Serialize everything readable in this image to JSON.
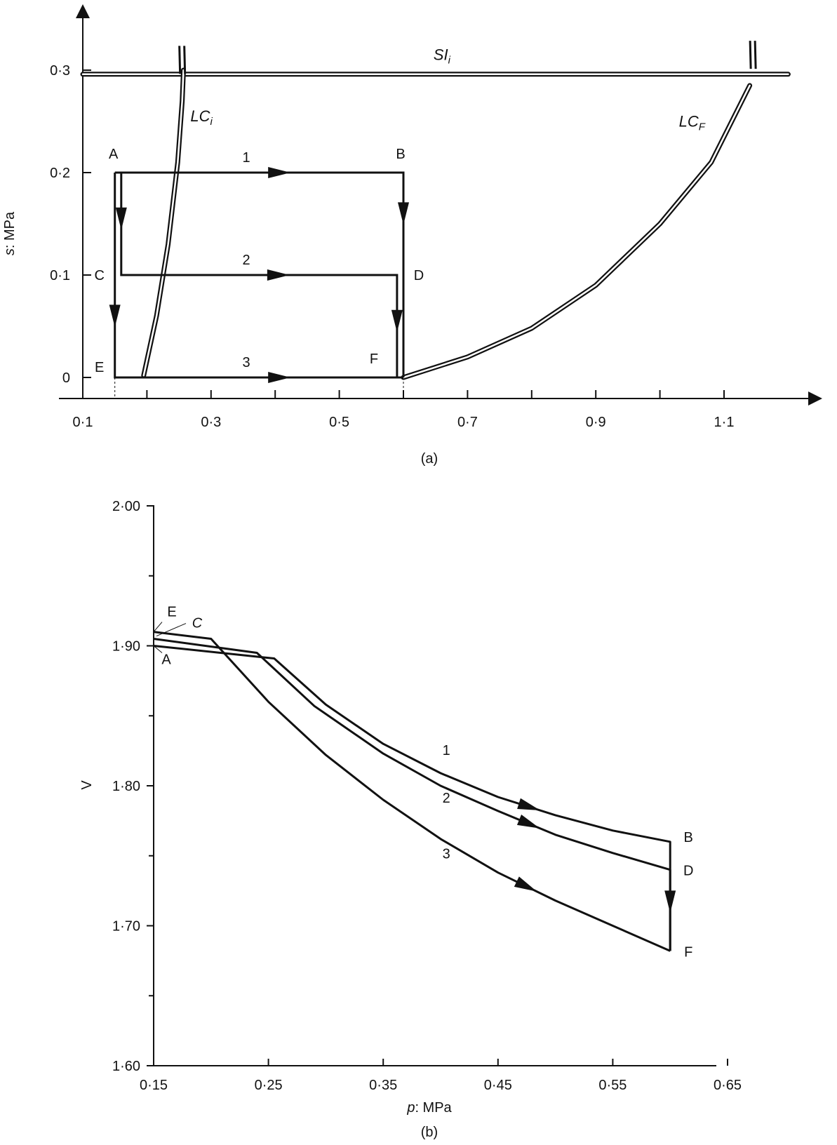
{
  "chart_data": [
    {
      "type": "line",
      "panel_label": "(a)",
      "ylabel_var": "s",
      "ylabel_unit": ": MPa",
      "xlim": [
        0.1,
        1.2
      ],
      "ylim": [
        0,
        0.3
      ],
      "x_ticks": [
        0.1,
        0.2,
        0.3,
        0.4,
        0.5,
        0.6,
        0.7,
        0.8,
        0.9,
        1.0,
        1.1
      ],
      "x_tick_labels": [
        {
          "x": 0.1,
          "label": "0·1"
        },
        {
          "x": 0.3,
          "label": "0·3"
        },
        {
          "x": 0.5,
          "label": "0·5"
        },
        {
          "x": 0.7,
          "label": "0·7"
        },
        {
          "x": 0.9,
          "label": "0·9"
        },
        {
          "x": 1.1,
          "label": "1·1"
        }
      ],
      "y_ticks": [
        {
          "y": 0,
          "label": "0"
        },
        {
          "y": 0.1,
          "label": "0·1"
        },
        {
          "y": 0.2,
          "label": "0·2"
        },
        {
          "y": 0.3,
          "label": "0·3"
        }
      ],
      "grid": false,
      "curves": [
        {
          "main": "SI",
          "sub": "i",
          "label_at": [
            0.66,
            0.31
          ],
          "points": [
            [
              0.1,
              0.296
            ],
            [
              1.2,
              0.296
            ]
          ]
        },
        {
          "main": "LC",
          "sub": "i",
          "label_at": [
            0.285,
            0.25
          ],
          "points": [
            [
              0.195,
              0.002
            ],
            [
              0.215,
              0.06
            ],
            [
              0.233,
              0.13
            ],
            [
              0.248,
              0.21
            ],
            [
              0.255,
              0.27
            ],
            [
              0.257,
              0.3
            ]
          ]
        },
        {
          "main": "LC",
          "sub": "F",
          "label_at": [
            1.05,
            0.245
          ],
          "points": [
            [
              0.6,
              0.0
            ],
            [
              0.7,
              0.02
            ],
            [
              0.8,
              0.048
            ],
            [
              0.9,
              0.09
            ],
            [
              1.0,
              0.15
            ],
            [
              1.08,
              0.21
            ],
            [
              1.14,
              0.285
            ]
          ]
        }
      ],
      "points": [
        {
          "name": "A",
          "x": 0.15,
          "y": 0.2
        },
        {
          "name": "B",
          "x": 0.6,
          "y": 0.2
        },
        {
          "name": "C",
          "x": 0.15,
          "y": 0.1
        },
        {
          "name": "D",
          "x": 0.6,
          "y": 0.1
        },
        {
          "name": "E",
          "x": 0.15,
          "y": 0.0
        },
        {
          "name": "F",
          "x": 0.6,
          "y": 0.0
        }
      ],
      "series": [
        {
          "name": "1",
          "points": [
            [
              0.15,
              0.2
            ],
            [
              0.6,
              0.2
            ],
            [
              0.6,
              0.0
            ]
          ]
        },
        {
          "name": "2",
          "points": [
            [
              0.16,
              0.2
            ],
            [
              0.16,
              0.1
            ],
            [
              0.59,
              0.1
            ],
            [
              0.59,
              0.0
            ]
          ]
        },
        {
          "name": "3",
          "points": [
            [
              0.15,
              0.2
            ],
            [
              0.15,
              0.0
            ],
            [
              0.6,
              0.0
            ]
          ]
        }
      ]
    },
    {
      "type": "line",
      "panel_label": "(b)",
      "xlabel_var": "p",
      "xlabel_unit": ": MPa",
      "ylabel": "V",
      "xlim": [
        0.15,
        0.65
      ],
      "ylim": [
        1.6,
        2.0
      ],
      "x_ticks": [
        {
          "x": 0.15,
          "label": "0·15"
        },
        {
          "x": 0.25,
          "label": "0·25"
        },
        {
          "x": 0.35,
          "label": "0·35"
        },
        {
          "x": 0.45,
          "label": "0·45"
        },
        {
          "x": 0.55,
          "label": "0·55"
        },
        {
          "x": 0.65,
          "label": "0·65"
        }
      ],
      "y_ticks": [
        {
          "y": 1.6,
          "label": "1·60"
        },
        {
          "y": 1.7,
          "label": "1·70"
        },
        {
          "y": 1.8,
          "label": "1·80"
        },
        {
          "y": 1.9,
          "label": "1·90"
        },
        {
          "y": 2.0,
          "label": "2·00"
        }
      ],
      "minor_y_ticks": [
        1.65,
        1.75,
        1.85,
        1.95
      ],
      "grid": false,
      "points": [
        {
          "name": "A",
          "x": 0.15,
          "y": 1.9
        },
        {
          "name": "B",
          "x": 0.6,
          "y": 1.76
        },
        {
          "name": "C",
          "x": 0.15,
          "y": 1.907
        },
        {
          "name": "D",
          "x": 0.6,
          "y": 1.74
        },
        {
          "name": "E",
          "x": 0.15,
          "y": 1.91
        },
        {
          "name": "F",
          "x": 0.6,
          "y": 1.682
        }
      ],
      "series": [
        {
          "name": "1",
          "points": [
            [
              0.15,
              1.9
            ],
            [
              0.255,
              1.891
            ],
            [
              0.3,
              1.858
            ],
            [
              0.35,
              1.83
            ],
            [
              0.4,
              1.809
            ],
            [
              0.45,
              1.792
            ],
            [
              0.5,
              1.779
            ],
            [
              0.55,
              1.768
            ],
            [
              0.6,
              1.76
            ],
            [
              0.6,
              1.682
            ]
          ]
        },
        {
          "name": "2",
          "points": [
            [
              0.15,
              1.905
            ],
            [
              0.24,
              1.895
            ],
            [
              0.29,
              1.857
            ],
            [
              0.35,
              1.823
            ],
            [
              0.4,
              1.8
            ],
            [
              0.45,
              1.782
            ],
            [
              0.5,
              1.765
            ],
            [
              0.55,
              1.752
            ],
            [
              0.6,
              1.74
            ],
            [
              0.6,
              1.682
            ]
          ]
        },
        {
          "name": "3",
          "points": [
            [
              0.15,
              1.91
            ],
            [
              0.2,
              1.905
            ],
            [
              0.25,
              1.86
            ],
            [
              0.3,
              1.822
            ],
            [
              0.35,
              1.79
            ],
            [
              0.4,
              1.762
            ],
            [
              0.45,
              1.738
            ],
            [
              0.5,
              1.718
            ],
            [
              0.55,
              1.7
            ],
            [
              0.6,
              1.682
            ]
          ]
        }
      ]
    }
  ]
}
